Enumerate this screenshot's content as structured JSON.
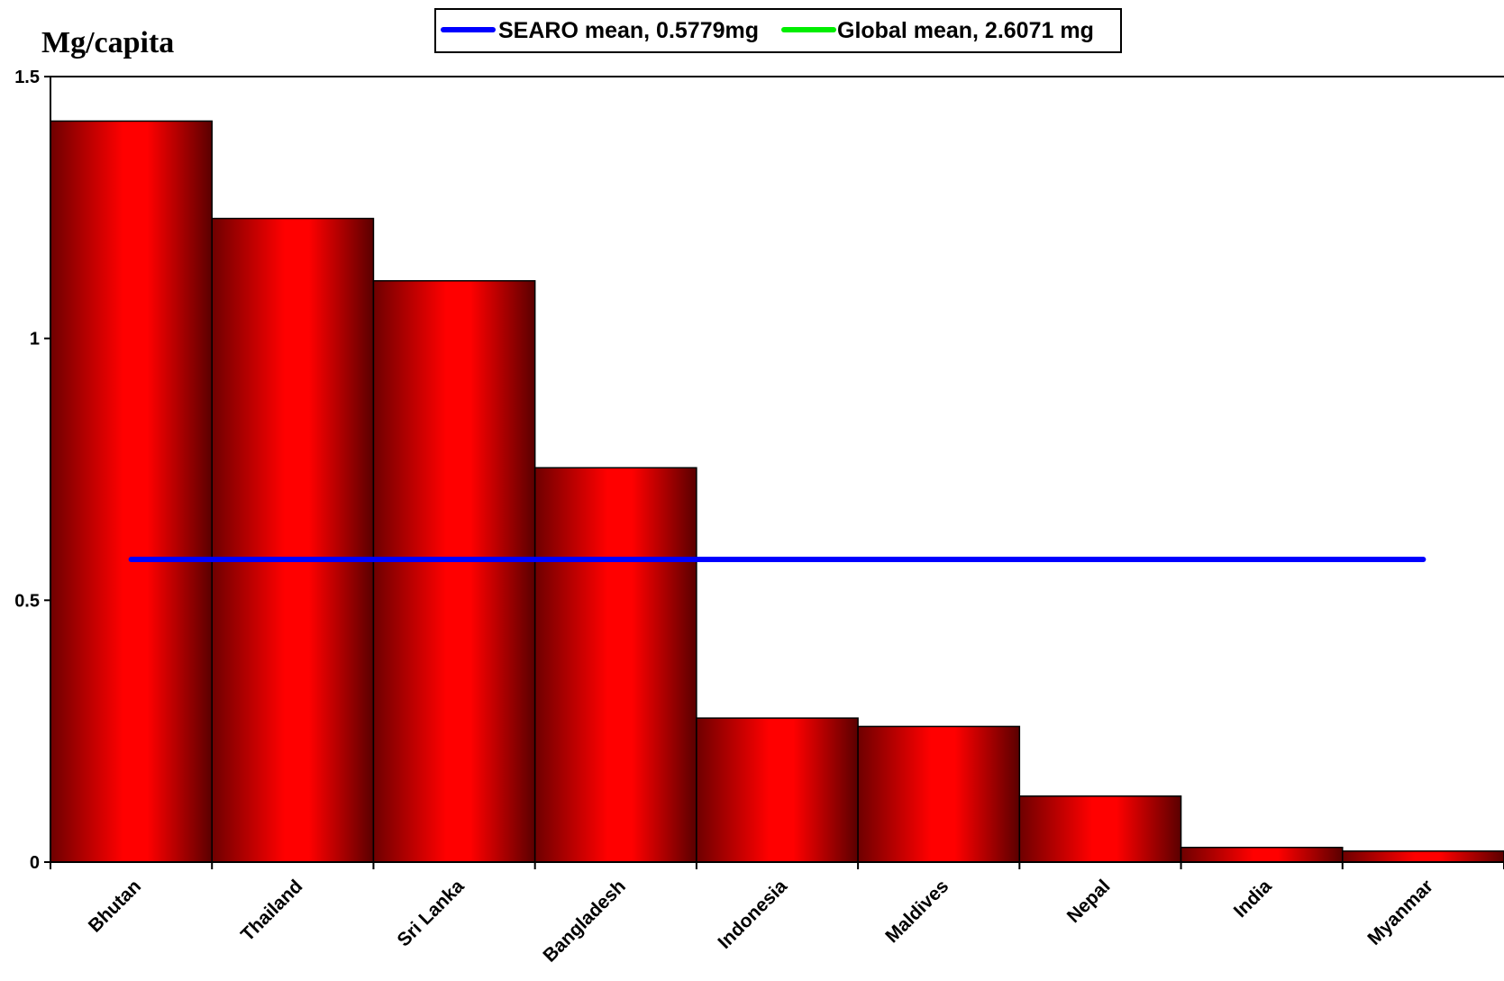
{
  "chart_data": {
    "type": "bar",
    "title": "",
    "ylabel": "Mg/capita",
    "xlabel": "",
    "categories": [
      "Bhutan",
      "Thailand",
      "Sri Lanka",
      "Bangladesh",
      "Indonesia",
      "Maldives",
      "Nepal",
      "India",
      "Myanmar"
    ],
    "values": [
      1.415,
      1.229,
      1.11,
      0.753,
      0.275,
      0.259,
      0.126,
      0.028,
      0.021
    ],
    "yticks": [
      "0",
      "0.5",
      "1",
      "1.5"
    ],
    "ylim": [
      0,
      1.5
    ],
    "grid": false,
    "bar_color": "#ff0000",
    "reference_lines": [
      {
        "name": "SEARO mean, 0.5779mg",
        "value": 0.5779,
        "color": "#0000ff"
      },
      {
        "name": "Global mean, 2.6071 mg",
        "value": 2.6071,
        "color": "#00ee00"
      }
    ],
    "legend": {
      "placement": "top-center"
    }
  }
}
